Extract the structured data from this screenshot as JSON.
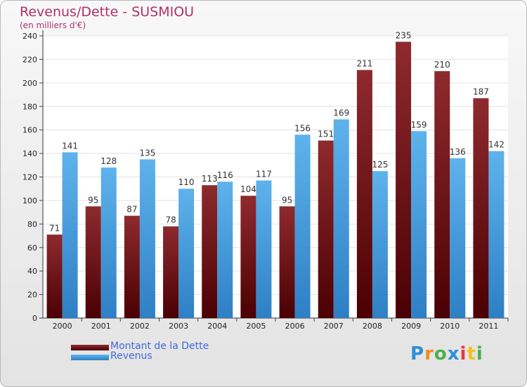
{
  "chart_data": {
    "type": "bar",
    "title": "Revenus/Dette - SUSMIOU",
    "subtitle": "(en milliers d'€)",
    "categories": [
      "2000",
      "2001",
      "2002",
      "2003",
      "2004",
      "2005",
      "2006",
      "2007",
      "2008",
      "2009",
      "2010",
      "2011"
    ],
    "series": [
      {
        "name": "Montant de la Dette",
        "color": "#7a1518",
        "values": [
          71,
          95,
          87,
          78,
          113,
          104,
          95,
          151,
          211,
          235,
          210,
          187
        ]
      },
      {
        "name": "Revenus",
        "color": "#4aa3e3",
        "values": [
          141,
          128,
          135,
          110,
          116,
          117,
          156,
          169,
          125,
          159,
          136,
          142
        ]
      }
    ],
    "ylim": [
      0,
      240
    ],
    "yticks": [
      0,
      20,
      40,
      60,
      80,
      100,
      120,
      140,
      160,
      180,
      200,
      220,
      240
    ],
    "grid": true,
    "legend_position": "bottom-left"
  },
  "logo": {
    "letters": [
      "P",
      "r",
      "o",
      "x",
      "i",
      "t",
      "i"
    ],
    "colors": [
      "#2f8fd8",
      "#f28c1e",
      "#4ab04a",
      "#2f8fd8",
      "#e23b3b",
      "#f2c21e",
      "#4ab04a"
    ]
  }
}
